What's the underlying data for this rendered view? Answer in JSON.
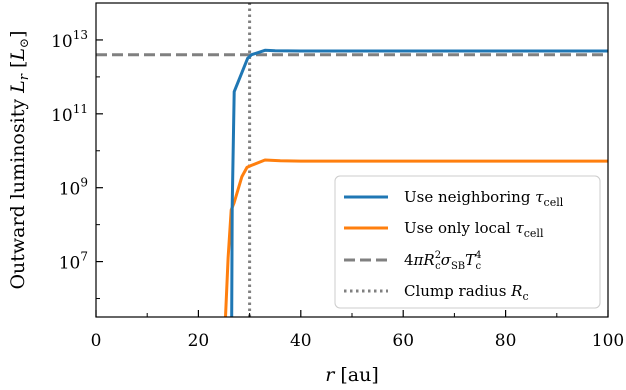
{
  "chart_data": {
    "type": "line",
    "xlabel": "r [au]",
    "ylabel": "Outward luminosity L_r [L_⊙]",
    "xlim": [
      0,
      100
    ],
    "ylim": [
      5.5,
      14.0
    ],
    "y_scale": "log10",
    "x_ticks": [
      "0",
      "20",
      "40",
      "60",
      "80",
      "100"
    ],
    "y_ticks": [
      {
        "exp": 7,
        "text": "10",
        "sup": "7"
      },
      {
        "exp": 9,
        "text": "10",
        "sup": "9"
      },
      {
        "exp": 11,
        "text": "10",
        "sup": "11"
      },
      {
        "exp": 13,
        "text": "10",
        "sup": "13"
      }
    ],
    "grid": false,
    "legend_placement": "lower-right",
    "series": [
      {
        "name": "Use neighboring τcell",
        "color": "#1f77b4",
        "style": "solid",
        "x": [
          26.5,
          26.6,
          27.0,
          29.6,
          30.4,
          33.0,
          35,
          40,
          60,
          80,
          100
        ],
        "log10_y": [
          5.5,
          8.5,
          11.6,
          12.5,
          12.6,
          12.72,
          12.71,
          12.7,
          12.7,
          12.7,
          12.7
        ]
      },
      {
        "name": "Use only local τcell",
        "color": "#ff7f0e",
        "style": "solid",
        "x": [
          25.3,
          25.8,
          26.4,
          27.0,
          28.5,
          29.5,
          30.3,
          33.0,
          36,
          40,
          60,
          80,
          100
        ],
        "log10_y": [
          5.5,
          7.1,
          8.4,
          8.6,
          9.3,
          9.55,
          9.6,
          9.75,
          9.73,
          9.72,
          9.72,
          9.72,
          9.72
        ]
      },
      {
        "name": "4πR_c²σ_SB T_c⁴",
        "color": "#808080",
        "style": "dashed",
        "x": [
          0,
          100
        ],
        "log10_y": [
          12.6,
          12.6
        ]
      },
      {
        "name": "Clump radius R_c",
        "color": "#808080",
        "style": "dotted",
        "x": [
          30,
          30
        ],
        "log10_y": [
          5.5,
          14.0
        ]
      }
    ]
  }
}
